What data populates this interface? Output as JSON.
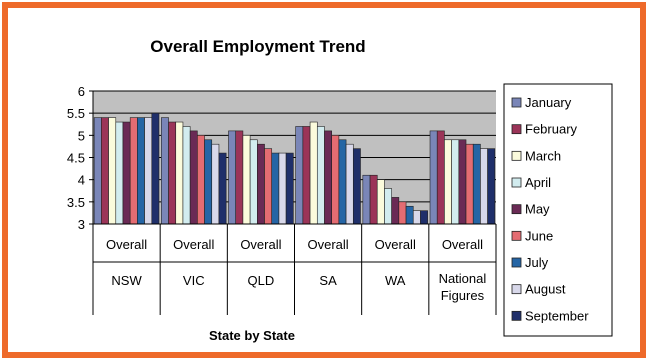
{
  "chart_data": {
    "type": "bar",
    "title": "Overall Employment Trend",
    "xlabel": "State by State",
    "ylabel": "",
    "ylim": [
      3,
      6
    ],
    "yticks": [
      "6",
      "5.5",
      "5",
      "4.5",
      "4",
      "3.5",
      "3"
    ],
    "subcategory_label": "Overall",
    "categories": [
      "NSW",
      "VIC",
      "QLD",
      "SA",
      "WA",
      "National Figures"
    ],
    "category_lines": [
      [
        "NSW"
      ],
      [
        "VIC"
      ],
      [
        "QLD"
      ],
      [
        "SA"
      ],
      [
        "WA"
      ],
      [
        "National",
        "Figures"
      ]
    ],
    "series": [
      {
        "name": "January",
        "color": "#7a86b8",
        "values": [
          5.4,
          5.4,
          5.1,
          5.2,
          4.1,
          5.1
        ]
      },
      {
        "name": "February",
        "color": "#9b3458",
        "values": [
          5.4,
          5.3,
          5.1,
          5.2,
          4.1,
          5.1
        ]
      },
      {
        "name": "March",
        "color": "#fbfbdc",
        "values": [
          5.4,
          5.3,
          5.0,
          5.3,
          4.0,
          4.9
        ]
      },
      {
        "name": "April",
        "color": "#d2ecef",
        "values": [
          5.3,
          5.2,
          4.9,
          5.2,
          3.8,
          4.9
        ]
      },
      {
        "name": "May",
        "color": "#6a2a55",
        "values": [
          5.3,
          5.1,
          4.8,
          5.1,
          3.6,
          4.9
        ]
      },
      {
        "name": "June",
        "color": "#e46c72",
        "values": [
          5.4,
          5.0,
          4.7,
          5.0,
          3.5,
          4.8
        ]
      },
      {
        "name": "July",
        "color": "#2565a5",
        "values": [
          5.4,
          4.9,
          4.6,
          4.9,
          3.4,
          4.8
        ]
      },
      {
        "name": "August",
        "color": "#d8d8ea",
        "values": [
          5.4,
          4.8,
          4.6,
          4.8,
          3.3,
          4.7
        ]
      },
      {
        "name": "September",
        "color": "#1f2f6a",
        "values": [
          5.5,
          4.6,
          4.6,
          4.7,
          3.3,
          4.7
        ]
      }
    ],
    "plot_background": "#c0c0c0",
    "grid": true,
    "legend_position": "right"
  },
  "frame_color": "#ee6a2a"
}
